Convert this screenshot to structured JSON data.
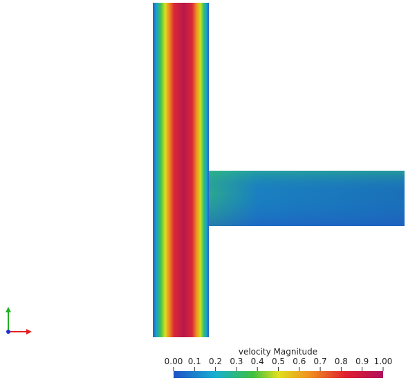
{
  "colorbar": {
    "title": "velocity Magnitude",
    "range": [
      0,
      1
    ],
    "ticks": [
      {
        "value": 0,
        "label": "0.00"
      },
      {
        "value": 0.1,
        "label": "0.1"
      },
      {
        "value": 0.2,
        "label": "0.2"
      },
      {
        "value": 0.3,
        "label": "0.3"
      },
      {
        "value": 0.4,
        "label": "0.4"
      },
      {
        "value": 0.5,
        "label": "0.5"
      },
      {
        "value": 0.6,
        "label": "0.6"
      },
      {
        "value": 0.7,
        "label": "0.7"
      },
      {
        "value": 0.8,
        "label": "0.8"
      },
      {
        "value": 0.9,
        "label": "0.9"
      },
      {
        "value": 1,
        "label": "1.00"
      }
    ]
  }
}
